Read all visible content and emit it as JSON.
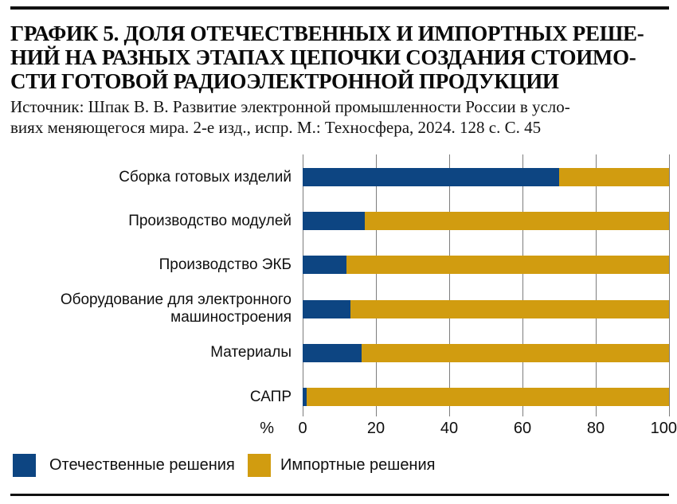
{
  "header": {
    "title_lines": [
      "ГРАФИК 5. ДОЛЯ ОТЕЧЕСТВЕННЫХ И ИМПОРТНЫХ РЕШЕ-",
      "НИЙ НА РАЗНЫХ ЭТАПАХ ЦЕПОЧКИ СОЗДАНИЯ СТОИМО-",
      "СТИ ГОТОВОЙ РАДИОЭЛЕКТРОННОЙ ПРОДУКЦИИ"
    ],
    "source_lines": [
      "Источник: Шпак В. В. Развитие электронной промышленности России в усло-",
      "виях меняющегося мира. 2-е изд., испр. М.: Техносфера, 2024. 128 с. С. 45"
    ]
  },
  "chart_data": {
    "type": "bar",
    "orientation": "horizontal",
    "stacked": true,
    "categories": [
      "Сборка готовых изделий",
      "Производство модулей",
      "Производство ЭКБ",
      "Оборудование для электронного\nмашиностроения",
      "Материалы",
      "САПР"
    ],
    "series": [
      {
        "name": "Отечественные решения",
        "color": "#0d4582",
        "values": [
          70,
          17,
          12,
          13,
          16,
          1
        ]
      },
      {
        "name": "Импортные решения",
        "color": "#d19c10",
        "values": [
          30,
          83,
          88,
          87,
          84,
          99
        ]
      }
    ],
    "xlabel": "%",
    "x_ticks": [
      0,
      20,
      40,
      60,
      80,
      100
    ],
    "xlim": [
      0,
      100
    ],
    "grid": true,
    "gridline_color": "#7d7d7d",
    "legend_position": "bottom-left"
  }
}
